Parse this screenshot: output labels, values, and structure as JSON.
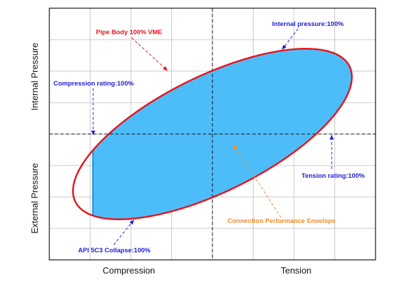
{
  "colors": {
    "vme_curve": "#e8141c",
    "envelope_fill": "#4dbdf9",
    "envelope_edge": "#1a8fd6",
    "rating_annotation": "#2020d0",
    "vme_annotation": "#e8141c",
    "envelope_annotation": "#f08a2a",
    "grid": "#c8c8c8",
    "axis_dash": "#111111"
  },
  "chart_data": {
    "type": "area",
    "xlabel_left": "Compression",
    "xlabel_right": "Tension",
    "ylabel_top": "Internal Pressure",
    "ylabel_bottom": "External Pressure",
    "xlim": [
      -1.35,
      1.35
    ],
    "ylim": [
      -1.1,
      1.1
    ],
    "grid": true,
    "axes_through_origin": "dashed",
    "series": [
      {
        "name": "Pipe Body 100% VME",
        "kind": "ellipse-outline",
        "center": [
          0,
          0
        ],
        "semi_major": 1.28,
        "semi_minor": 0.5,
        "rotation_deg": 28
      },
      {
        "name": "Connection Performance Envelope",
        "kind": "filled-region",
        "bounds": {
          "compression_limit": -0.99
        }
      }
    ],
    "annotations": [
      {
        "id": "vme",
        "text": "Pipe Body 100% VME",
        "color_key": "vme_annotation"
      },
      {
        "id": "internal",
        "text": "Internal pressure:100%",
        "color_key": "rating_annotation"
      },
      {
        "id": "compression",
        "text": "Compression rating:100%",
        "color_key": "rating_annotation"
      },
      {
        "id": "tension",
        "text": "Tension rating:100%",
        "color_key": "rating_annotation"
      },
      {
        "id": "collapse",
        "text": "API 5C3 Collapse:100%",
        "color_key": "rating_annotation"
      },
      {
        "id": "envelope",
        "text": "Connection Performance Envelope",
        "color_key": "envelope_annotation"
      }
    ]
  }
}
